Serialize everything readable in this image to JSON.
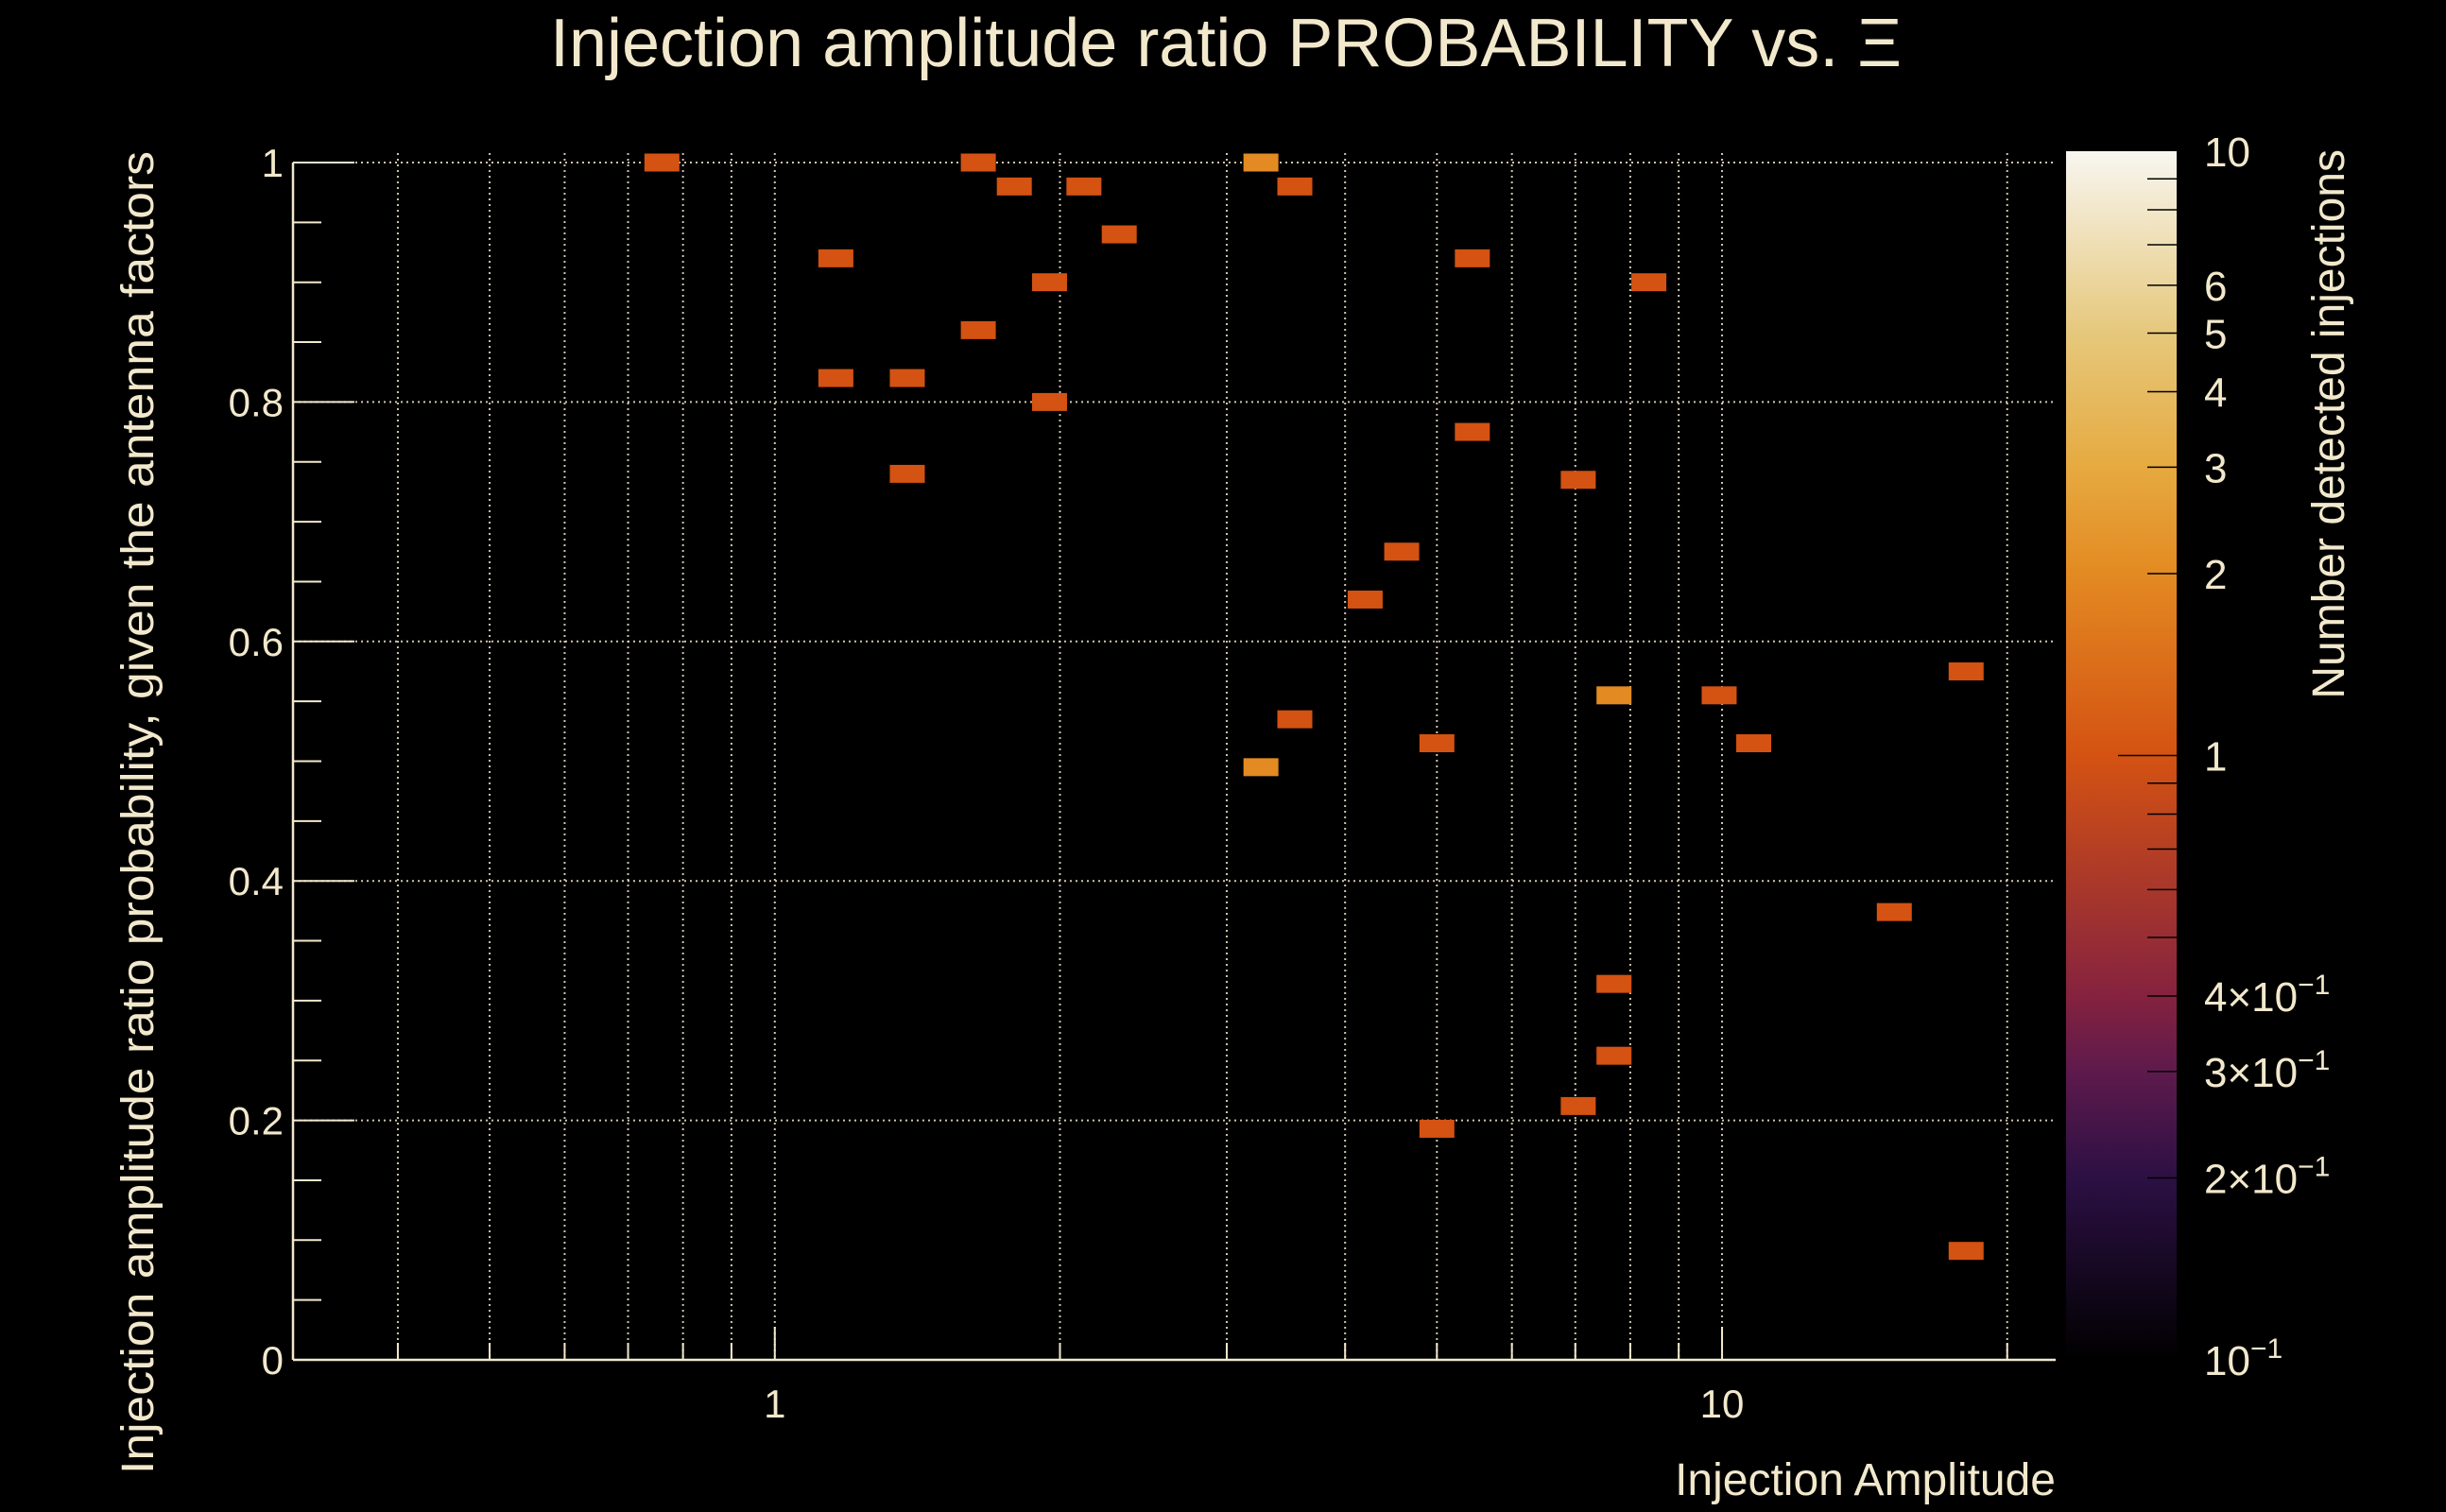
{
  "chart_data": {
    "type": "heatmap",
    "title": "Injection amplitude ratio PROBABILITY vs.  Ξ",
    "xlabel": "Injection Amplitude",
    "ylabel": "Injection amplitude ratio probability, given the antenna factors",
    "zlabel": "Number detected injections",
    "xscale": "log",
    "xlim": [
      0.31,
      22.5
    ],
    "ylim": [
      0,
      1
    ],
    "zscale": "log",
    "zlim": [
      0.1,
      10
    ],
    "grid": true,
    "x_tick_labels": [
      {
        "value": 1,
        "label": "1"
      },
      {
        "value": 10,
        "label": "10"
      }
    ],
    "y_tick_labels": [
      {
        "value": 0,
        "label": "0"
      },
      {
        "value": 0.2,
        "label": "0.2"
      },
      {
        "value": 0.4,
        "label": "0.4"
      },
      {
        "value": 0.6,
        "label": "0.6"
      },
      {
        "value": 0.8,
        "label": "0.8"
      },
      {
        "value": 1,
        "label": "1"
      }
    ],
    "z_tick_labels": [
      {
        "value": 10,
        "label": "10"
      },
      {
        "value": 6,
        "label": "6"
      },
      {
        "value": 5,
        "label": "5"
      },
      {
        "value": 4,
        "label": "4"
      },
      {
        "value": 3,
        "label": "3"
      },
      {
        "value": 2,
        "label": "2"
      },
      {
        "value": 1,
        "label": "1"
      },
      {
        "value": 0.4,
        "label": "4×10",
        "exp": "−1"
      },
      {
        "value": 0.3,
        "label": "3×10",
        "exp": "−1"
      },
      {
        "value": 0.2,
        "label": "2×10",
        "exp": "−1"
      },
      {
        "value": 0.1,
        "label": "10",
        "exp": "−1"
      }
    ],
    "colormap": [
      {
        "z": 0.1,
        "color": "#000000"
      },
      {
        "z": 0.2,
        "color": "#2c1044"
      },
      {
        "z": 0.3,
        "color": "#5e1a4c"
      },
      {
        "z": 0.4,
        "color": "#85223f"
      },
      {
        "z": 1,
        "color": "#d45212"
      },
      {
        "z": 2,
        "color": "#e38a22"
      },
      {
        "z": 3,
        "color": "#e6aa40"
      },
      {
        "z": 5,
        "color": "#e6c87c"
      },
      {
        "z": 10,
        "color": "#f8f6f0"
      }
    ],
    "cells": [
      {
        "x": 0.76,
        "y": 1.0,
        "z": 1
      },
      {
        "x": 1.16,
        "y": 0.92,
        "z": 1
      },
      {
        "x": 1.16,
        "y": 0.82,
        "z": 1
      },
      {
        "x": 1.38,
        "y": 0.82,
        "z": 1
      },
      {
        "x": 1.38,
        "y": 0.74,
        "z": 1
      },
      {
        "x": 1.64,
        "y": 1.0,
        "z": 1
      },
      {
        "x": 1.79,
        "y": 0.98,
        "z": 1
      },
      {
        "x": 1.64,
        "y": 0.86,
        "z": 1
      },
      {
        "x": 1.95,
        "y": 0.9,
        "z": 1
      },
      {
        "x": 1.95,
        "y": 0.8,
        "z": 1
      },
      {
        "x": 2.12,
        "y": 0.98,
        "z": 1
      },
      {
        "x": 2.31,
        "y": 0.94,
        "z": 1
      },
      {
        "x": 3.26,
        "y": 1.0,
        "z": 2
      },
      {
        "x": 3.54,
        "y": 0.98,
        "z": 1
      },
      {
        "x": 3.26,
        "y": 0.495,
        "z": 2
      },
      {
        "x": 3.54,
        "y": 0.535,
        "z": 1
      },
      {
        "x": 4.2,
        "y": 0.635,
        "z": 1
      },
      {
        "x": 4.59,
        "y": 0.675,
        "z": 1
      },
      {
        "x": 5.0,
        "y": 0.515,
        "z": 1
      },
      {
        "x": 5.45,
        "y": 0.92,
        "z": 1
      },
      {
        "x": 5.45,
        "y": 0.775,
        "z": 1
      },
      {
        "x": 5.0,
        "y": 0.193,
        "z": 1
      },
      {
        "x": 7.05,
        "y": 0.735,
        "z": 1
      },
      {
        "x": 7.05,
        "y": 0.212,
        "z": 1
      },
      {
        "x": 7.69,
        "y": 0.555,
        "z": 2
      },
      {
        "x": 7.69,
        "y": 0.314,
        "z": 1
      },
      {
        "x": 7.69,
        "y": 0.254,
        "z": 1
      },
      {
        "x": 8.37,
        "y": 0.9,
        "z": 1
      },
      {
        "x": 9.93,
        "y": 0.555,
        "z": 1
      },
      {
        "x": 10.8,
        "y": 0.515,
        "z": 1
      },
      {
        "x": 15.2,
        "y": 0.374,
        "z": 1
      },
      {
        "x": 18.1,
        "y": 0.575,
        "z": 1
      },
      {
        "x": 18.1,
        "y": 0.091,
        "z": 1
      }
    ]
  }
}
